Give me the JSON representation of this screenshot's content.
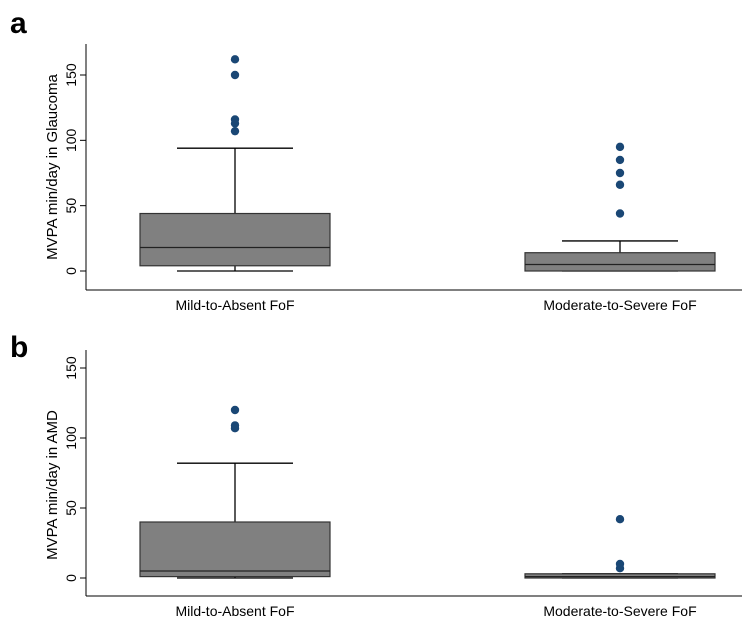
{
  "chart_data": [
    {
      "panel": "a",
      "type": "box",
      "ylabel": "MVPA min/day in Glaucoma",
      "ylim": [
        0,
        160
      ],
      "yticks": [
        0,
        50,
        100,
        150
      ],
      "grid": false,
      "categories": [
        "Mild-to-Absent FoF",
        "Moderate-to-Severe FoF"
      ],
      "boxes": [
        {
          "min": 0,
          "q1": 4,
          "median": 18,
          "q3": 44,
          "max": 94,
          "outliers": [
            107,
            113,
            116,
            150,
            162
          ]
        },
        {
          "min": 0,
          "q1": 0,
          "median": 5,
          "q3": 14,
          "max": 23,
          "outliers": [
            44,
            66,
            75,
            85,
            95
          ]
        }
      ],
      "colors": {
        "box": "#808080",
        "outlier": "#1a4775",
        "line": "#000000"
      }
    },
    {
      "panel": "b",
      "type": "box",
      "ylabel": "MVPA min/day in AMD",
      "ylim": [
        0,
        160
      ],
      "yticks": [
        0,
        50,
        100,
        150
      ],
      "grid": false,
      "categories": [
        "Mild-to-Absent FoF",
        "Moderate-to-Severe FoF"
      ],
      "boxes": [
        {
          "min": 0,
          "q1": 1,
          "median": 5,
          "q3": 40,
          "max": 82,
          "outliers": [
            107,
            109,
            120
          ]
        },
        {
          "min": 0,
          "q1": 0,
          "median": 1,
          "q3": 3,
          "max": 3,
          "outliers": [
            7,
            10,
            42
          ]
        }
      ],
      "colors": {
        "box": "#808080",
        "outlier": "#1a4775",
        "line": "#000000"
      }
    }
  ]
}
